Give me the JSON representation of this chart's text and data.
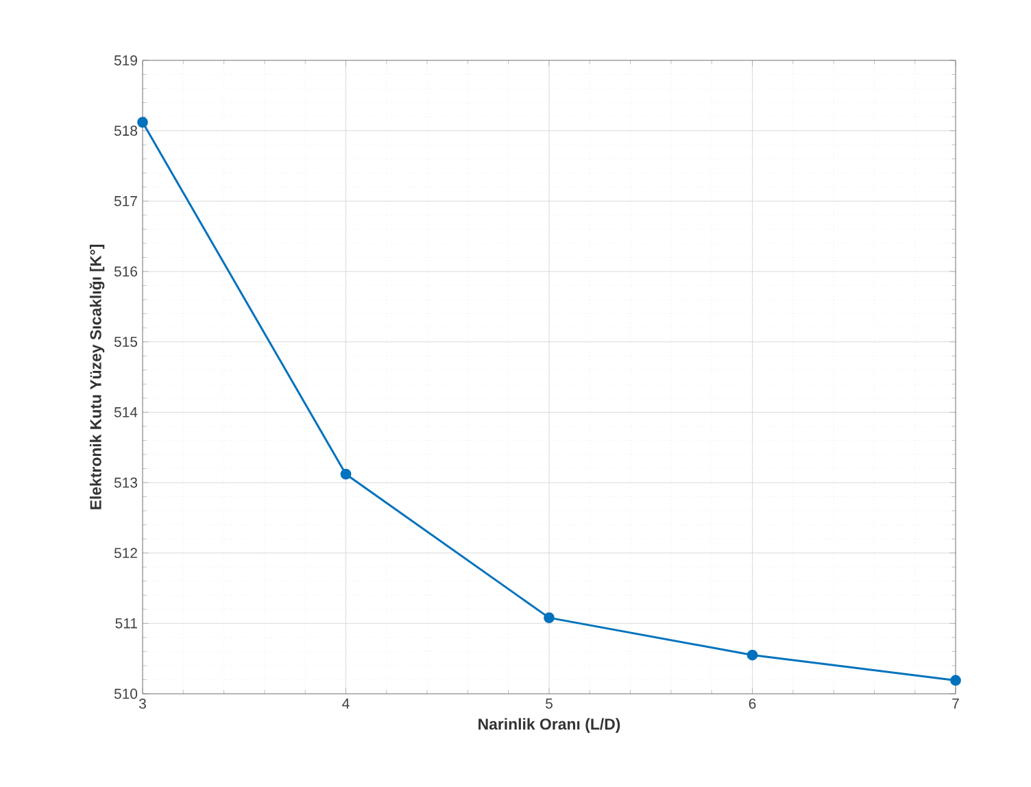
{
  "chart_data": {
    "type": "line",
    "xlabel": "Narinlik Oranı (L/D)",
    "ylabel": "Elektronik Kutu Yüzey Sıcaklığı [K°]",
    "x": [
      3,
      4,
      5,
      6,
      7
    ],
    "series": [
      {
        "color": "#0072bd",
        "values": [
          518.12,
          513.12,
          511.08,
          510.55,
          510.19
        ]
      }
    ],
    "xlim": [
      3,
      7
    ],
    "xticks": [
      3,
      4,
      5,
      6,
      7
    ],
    "ylim": [
      510,
      519
    ],
    "yticks": [
      510,
      511,
      512,
      513,
      514,
      515,
      516,
      517,
      518,
      519
    ],
    "grid": true,
    "marker": "circle",
    "line_style": "solid"
  }
}
